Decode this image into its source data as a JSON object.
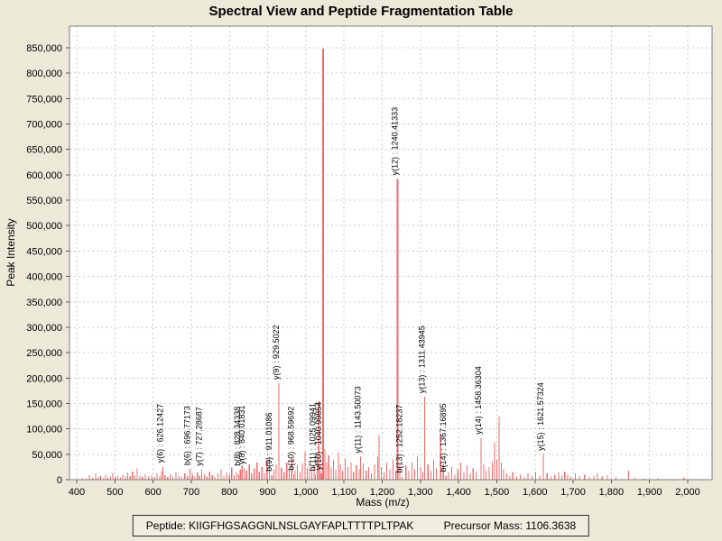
{
  "window": {
    "title": "Spectral View and Peptide Fragmentation Table"
  },
  "footer": {
    "peptide_label": "Peptide: KIIGFHGSAGGNLNSLGAYFAPLTTTTPLTPAK",
    "precursor_label": "Precursor Mass: 1106.3638",
    "peptide_sequence": "KIIGFHGSAGGNLNSLGAYFAPLTTTTPLTPAK",
    "precursor_mass": 1106.3638
  },
  "colors": {
    "background": "#ece9d8",
    "plot_bg": "#ffffff",
    "grid": "#cccccc",
    "plot_border": "#808080",
    "peak": "#f26b6b",
    "tick": "#555555",
    "text": "#000000"
  },
  "chart_data": {
    "type": "bar",
    "subtype": "mass-spectrum-stick-plot",
    "title": "Spectral View and Peptide Fragmentation Table",
    "xlabel": "Mass (m/z)",
    "ylabel": "Peak Intensity",
    "xlim": [
      381,
      2064
    ],
    "ylim": [
      0,
      890000
    ],
    "grid": true,
    "legend": "none",
    "x_ticks": [
      400,
      500,
      600,
      700,
      800,
      900,
      1000,
      1100,
      1200,
      1300,
      1400,
      1500,
      1600,
      1700,
      1800,
      1900,
      2000
    ],
    "x_tick_labels": [
      "400",
      "500",
      "600",
      "700",
      "800",
      "900",
      "1,000",
      "1,100",
      "1,200",
      "1,300",
      "1,400",
      "1,500",
      "1,600",
      "1,700",
      "1,800",
      "1,900",
      "2,000"
    ],
    "y_ticks": [
      0,
      50000,
      100000,
      150000,
      200000,
      250000,
      300000,
      350000,
      400000,
      450000,
      500000,
      550000,
      600000,
      650000,
      700000,
      750000,
      800000,
      850000
    ],
    "y_tick_labels": [
      "0",
      "50,000",
      "100,000",
      "150,000",
      "200,000",
      "250,000",
      "300,000",
      "350,000",
      "400,000",
      "450,000",
      "500,000",
      "550,000",
      "600,000",
      "650,000",
      "700,000",
      "750,000",
      "800,000",
      "850,000"
    ],
    "annotated_peaks": [
      {
        "ion": "y(6)",
        "label": "y(6) : 626.12427",
        "mz": 626.12427,
        "intensity": 26000
      },
      {
        "ion": "b(6)",
        "label": "b(6) : 696.77173",
        "mz": 696.77173,
        "intensity": 21000
      },
      {
        "ion": "y(7)",
        "label": "y(7) : 727.28687",
        "mz": 727.28687,
        "intensity": 20000
      },
      {
        "ion": "b(8)",
        "label": "b(8) : 828.34338",
        "mz": 828.34338,
        "intensity": 20000
      },
      {
        "ion": "y(8)",
        "label": "y(8) : 840.01831",
        "mz": 840.01831,
        "intensity": 23000
      },
      {
        "ion": "b(9)",
        "label": "b(9) : 911.01086",
        "mz": 911.01086,
        "intensity": 9000
      },
      {
        "ion": "y(9)",
        "label": "y(9) : 929.5022",
        "mz": 929.5022,
        "intensity": 190000
      },
      {
        "ion": "b(10)",
        "label": "b(10) : 968.59692",
        "mz": 968.59692,
        "intensity": 11000
      },
      {
        "ion": "b(11)",
        "label": "b(11) : 1025.09941",
        "mz": 1025.09941,
        "intensity": 10000
      },
      {
        "ion": "y(10)",
        "label": "y(10) : 1040.99854",
        "mz": 1040.99854,
        "intensity": 12000
      },
      {
        "ion": "y(11)",
        "label": "y(11) : 1143.50073",
        "mz": 1143.50073,
        "intensity": 45000
      },
      {
        "ion": "y(12)",
        "label": "y(12) : 1240.41333",
        "mz": 1240.41333,
        "intensity": 592000
      },
      {
        "ion": "b(13)",
        "label": "b(13) : 1252.18237",
        "mz": 1252.18237,
        "intensity": 6000
      },
      {
        "ion": "y(13)",
        "label": "y(13) : 1311.43945",
        "mz": 1311.43945,
        "intensity": 163000
      },
      {
        "ion": "b(14)",
        "label": "b(14) : 1367.16895",
        "mz": 1367.16895,
        "intensity": 8000
      },
      {
        "ion": "y(14)",
        "label": "y(14) : 1458.36304",
        "mz": 1458.36304,
        "intensity": 82000
      },
      {
        "ion": "y(15)",
        "label": "y(15) : 1621.57324",
        "mz": 1621.57324,
        "intensity": 50000
      }
    ],
    "noise_peaks": [
      [
        415,
        3000
      ],
      [
        426,
        2500
      ],
      [
        433,
        9000
      ],
      [
        442,
        3500
      ],
      [
        450,
        12000
      ],
      [
        456,
        4000
      ],
      [
        462,
        7000
      ],
      [
        469,
        3000
      ],
      [
        476,
        10000
      ],
      [
        482,
        4500
      ],
      [
        489,
        6000
      ],
      [
        495,
        13000
      ],
      [
        501,
        5000
      ],
      [
        508,
        8000
      ],
      [
        515,
        4000
      ],
      [
        521,
        10000
      ],
      [
        528,
        6000
      ],
      [
        534,
        14000
      ],
      [
        540,
        7000
      ],
      [
        546,
        16000
      ],
      [
        552,
        9000
      ],
      [
        558,
        22000
      ],
      [
        565,
        8000
      ],
      [
        572,
        5000
      ],
      [
        580,
        11000
      ],
      [
        588,
        6000
      ],
      [
        596,
        9000
      ],
      [
        604,
        5000
      ],
      [
        610,
        13000
      ],
      [
        617,
        7000
      ],
      [
        622,
        17000
      ],
      [
        631,
        9000
      ],
      [
        638,
        5000
      ],
      [
        645,
        11000
      ],
      [
        652,
        6000
      ],
      [
        660,
        15000
      ],
      [
        668,
        8000
      ],
      [
        675,
        5000
      ],
      [
        683,
        12000
      ],
      [
        690,
        7000
      ],
      [
        703,
        10000
      ],
      [
        710,
        6000
      ],
      [
        716,
        14000
      ],
      [
        722,
        8000
      ],
      [
        734,
        11000
      ],
      [
        741,
        6000
      ],
      [
        748,
        16000
      ],
      [
        755,
        9000
      ],
      [
        762,
        5000
      ],
      [
        770,
        12000
      ],
      [
        778,
        20000
      ],
      [
        785,
        8000
      ],
      [
        792,
        14000
      ],
      [
        800,
        10000
      ],
      [
        806,
        24000
      ],
      [
        812,
        9000
      ],
      [
        818,
        15000
      ],
      [
        824,
        11000
      ],
      [
        833,
        28000
      ],
      [
        845,
        18000
      ],
      [
        852,
        30000
      ],
      [
        858,
        12000
      ],
      [
        865,
        22000
      ],
      [
        872,
        34000
      ],
      [
        878,
        15000
      ],
      [
        885,
        25000
      ],
      [
        892,
        12000
      ],
      [
        898,
        38000
      ],
      [
        905,
        44000
      ],
      [
        916,
        20000
      ],
      [
        922,
        30000
      ],
      [
        936,
        24000
      ],
      [
        943,
        15000
      ],
      [
        950,
        34000
      ],
      [
        957,
        20000
      ],
      [
        963,
        42000
      ],
      [
        972,
        18000
      ],
      [
        978,
        28000
      ],
      [
        985,
        15000
      ],
      [
        991,
        32000
      ],
      [
        998,
        55000
      ],
      [
        1004,
        22000
      ],
      [
        1010,
        38000
      ],
      [
        1016,
        18000
      ],
      [
        1022,
        28000
      ],
      [
        1030,
        45000
      ],
      [
        1034,
        154000
      ],
      [
        1038,
        30000
      ],
      [
        1045,
        848000
      ],
      [
        1050,
        60000
      ],
      [
        1055,
        34000
      ],
      [
        1060,
        48000
      ],
      [
        1066,
        25000
      ],
      [
        1072,
        40000
      ],
      [
        1078,
        20000
      ],
      [
        1085,
        54000
      ],
      [
        1090,
        30000
      ],
      [
        1096,
        18000
      ],
      [
        1103,
        42000
      ],
      [
        1110,
        25000
      ],
      [
        1118,
        34000
      ],
      [
        1125,
        15000
      ],
      [
        1132,
        28000
      ],
      [
        1140,
        20000
      ],
      [
        1150,
        32000
      ],
      [
        1158,
        18000
      ],
      [
        1165,
        25000
      ],
      [
        1172,
        12000
      ],
      [
        1180,
        30000
      ],
      [
        1188,
        45000
      ],
      [
        1192,
        88000
      ],
      [
        1198,
        25000
      ],
      [
        1205,
        15000
      ],
      [
        1212,
        34000
      ],
      [
        1220,
        20000
      ],
      [
        1228,
        40000
      ],
      [
        1235,
        18000
      ],
      [
        1246,
        30000
      ],
      [
        1262,
        28000
      ],
      [
        1270,
        18000
      ],
      [
        1278,
        34000
      ],
      [
        1285,
        20000
      ],
      [
        1292,
        45000
      ],
      [
        1300,
        25000
      ],
      [
        1306,
        15000
      ],
      [
        1320,
        30000
      ],
      [
        1328,
        18000
      ],
      [
        1335,
        40000
      ],
      [
        1342,
        22000
      ],
      [
        1353,
        89000
      ],
      [
        1360,
        30000
      ],
      [
        1374,
        15000
      ],
      [
        1382,
        25000
      ],
      [
        1390,
        10000
      ],
      [
        1398,
        20000
      ],
      [
        1406,
        34000
      ],
      [
        1414,
        15000
      ],
      [
        1422,
        28000
      ],
      [
        1430,
        12000
      ],
      [
        1438,
        22000
      ],
      [
        1446,
        15000
      ],
      [
        1466,
        30000
      ],
      [
        1472,
        18000
      ],
      [
        1480,
        25000
      ],
      [
        1488,
        35000
      ],
      [
        1494,
        74000
      ],
      [
        1500,
        40000
      ],
      [
        1506,
        124000
      ],
      [
        1512,
        34000
      ],
      [
        1518,
        20000
      ],
      [
        1526,
        12000
      ],
      [
        1534,
        8000
      ],
      [
        1542,
        15000
      ],
      [
        1552,
        6000
      ],
      [
        1562,
        10000
      ],
      [
        1572,
        5000
      ],
      [
        1582,
        12000
      ],
      [
        1592,
        7000
      ],
      [
        1602,
        15000
      ],
      [
        1612,
        8000
      ],
      [
        1632,
        12000
      ],
      [
        1642,
        6000
      ],
      [
        1652,
        10000
      ],
      [
        1662,
        14000
      ],
      [
        1670,
        8000
      ],
      [
        1678,
        16000
      ],
      [
        1686,
        10000
      ],
      [
        1694,
        6000
      ],
      [
        1706,
        12000
      ],
      [
        1716,
        7000
      ],
      [
        1730,
        10000
      ],
      [
        1742,
        5000
      ],
      [
        1754,
        8000
      ],
      [
        1764,
        12000
      ],
      [
        1776,
        6000
      ],
      [
        1790,
        9000
      ],
      [
        1812,
        5000
      ],
      [
        1845,
        18000
      ],
      [
        1862,
        4000
      ],
      [
        1884,
        3000
      ],
      [
        1922,
        3000
      ],
      [
        1990,
        4000
      ]
    ]
  }
}
